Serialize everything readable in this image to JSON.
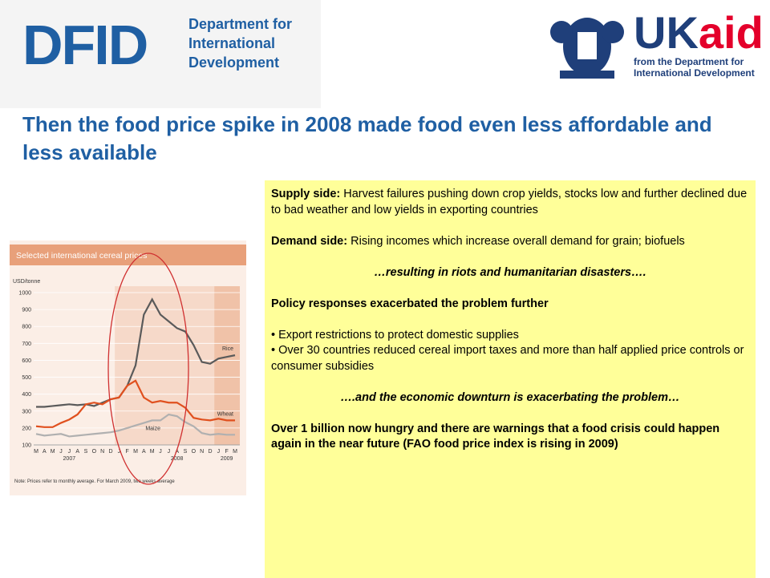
{
  "header": {
    "dfid_logo": "DFID",
    "dfid_name": [
      "Department for",
      "International",
      "Development"
    ],
    "ukaid_logo_uk": "UK",
    "ukaid_logo_aid": "aid",
    "ukaid_tagline": [
      "from the Department for",
      "International Development"
    ]
  },
  "slide_title": "Then the food price spike in 2008 made food even less affordable and less available",
  "chart_data": {
    "type": "line",
    "title": "Selected international cereal prices",
    "y_label": "USD/tonne",
    "categories": [
      "M",
      "A",
      "M",
      "J",
      "J",
      "A",
      "S",
      "O",
      "N",
      "D",
      "J",
      "F",
      "M",
      "A",
      "M",
      "J",
      "J",
      "A",
      "S",
      "O",
      "N",
      "D",
      "J",
      "F",
      "M"
    ],
    "years": [
      "2007",
      "2008",
      "2009"
    ],
    "series": [
      {
        "name": "Rice",
        "color": "#5a5a5a",
        "values": [
          325,
          325,
          330,
          335,
          340,
          335,
          340,
          330,
          350,
          370,
          380,
          450,
          570,
          870,
          960,
          870,
          830,
          790,
          770,
          690,
          590,
          580,
          610,
          620,
          630
        ]
      },
      {
        "name": "Wheat",
        "color": "#e0501e",
        "values": [
          210,
          205,
          205,
          230,
          250,
          280,
          340,
          350,
          340,
          370,
          380,
          450,
          480,
          380,
          350,
          360,
          350,
          350,
          320,
          260,
          250,
          245,
          255,
          245,
          245
        ]
      },
      {
        "name": "Maize",
        "color": "#b0b0b0",
        "values": [
          165,
          155,
          160,
          165,
          150,
          155,
          160,
          165,
          170,
          175,
          185,
          200,
          215,
          230,
          245,
          245,
          280,
          270,
          235,
          210,
          170,
          160,
          165,
          160,
          160
        ]
      }
    ],
    "ylim": [
      100,
      1000
    ],
    "yticks": [
      100,
      200,
      300,
      400,
      500,
      600,
      700,
      800,
      900,
      1000
    ],
    "note": "Note: Prices refer to monthly average. For March 2009, two weeks average"
  },
  "panel": {
    "supply_label": "Supply side:",
    "supply_text": " Harvest failures pushing down crop yields, stocks low and further declined due to bad weather and low yields in exporting countries",
    "demand_label": "Demand side:",
    "demand_text": " Rising incomes which increase overall demand for grain; biofuels",
    "result": "…resulting in riots and humanitarian disasters….",
    "policy_heading": "Policy responses exacerbated the problem further",
    "bullets": [
      "Export restrictions to protect domestic supplies",
      "Over 30 countries reduced cereal import taxes and more than half applied price controls or consumer subsidies"
    ],
    "downturn": "….and the economic downturn is exacerbating the problem…",
    "conclusion": "Over 1 billion now hungry and there are warnings that a food crisis could happen again in the near future (FAO food price index is rising in 2009)"
  }
}
